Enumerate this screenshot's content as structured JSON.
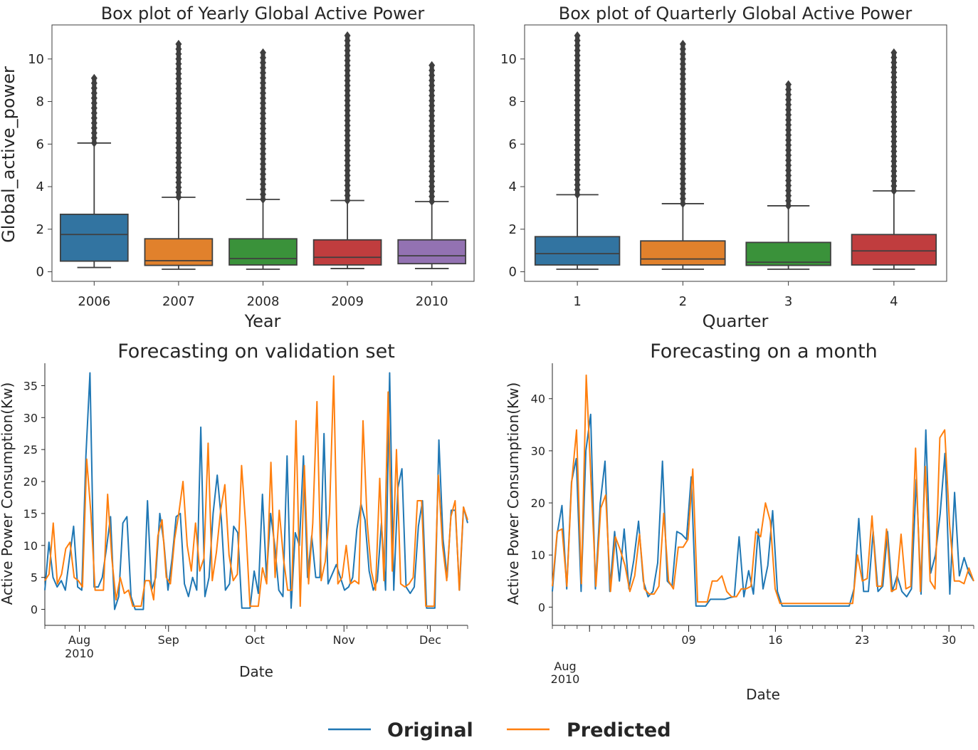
{
  "chart_data": [
    {
      "type": "box",
      "title": "Box plot of Yearly Global Active Power",
      "xlabel": "Year",
      "ylabel": "Global_active_power",
      "ylim": [
        -0.45,
        11.6
      ],
      "yticks": [
        0,
        2,
        4,
        6,
        8,
        10
      ],
      "grid": false,
      "categories": [
        "2006",
        "2007",
        "2008",
        "2009",
        "2010"
      ],
      "colors": [
        "#3274a1",
        "#e1812c",
        "#3a923a",
        "#c03d3e",
        "#9372b2"
      ],
      "boxes": [
        {
          "whisker_low": 0.2,
          "q1": 0.5,
          "median": 1.75,
          "q3": 2.7,
          "whisker_high": 6.05,
          "outlier_max": 9.1
        },
        {
          "whisker_low": 0.12,
          "q1": 0.3,
          "median": 0.52,
          "q3": 1.55,
          "whisker_high": 3.5,
          "outlier_max": 10.7
        },
        {
          "whisker_low": 0.12,
          "q1": 0.32,
          "median": 0.62,
          "q3": 1.55,
          "whisker_high": 3.4,
          "outlier_max": 10.3
        },
        {
          "whisker_low": 0.15,
          "q1": 0.32,
          "median": 0.68,
          "q3": 1.5,
          "whisker_high": 3.35,
          "outlier_max": 11.1
        },
        {
          "whisker_low": 0.15,
          "q1": 0.38,
          "median": 0.75,
          "q3": 1.5,
          "whisker_high": 3.3,
          "outlier_max": 9.7
        }
      ]
    },
    {
      "type": "box",
      "title": "Box plot of Quarterly Global Active Power",
      "xlabel": "Quarter",
      "ylabel": "",
      "ylim": [
        -0.45,
        11.6
      ],
      "yticks": [
        0,
        2,
        4,
        6,
        8,
        10
      ],
      "grid": false,
      "categories": [
        "1",
        "2",
        "3",
        "4"
      ],
      "colors": [
        "#3274a1",
        "#e1812c",
        "#3a923a",
        "#c03d3e"
      ],
      "boxes": [
        {
          "whisker_low": 0.12,
          "q1": 0.32,
          "median": 0.85,
          "q3": 1.65,
          "whisker_high": 3.62,
          "outlier_max": 11.1
        },
        {
          "whisker_low": 0.12,
          "q1": 0.32,
          "median": 0.6,
          "q3": 1.45,
          "whisker_high": 3.2,
          "outlier_max": 10.7
        },
        {
          "whisker_low": 0.12,
          "q1": 0.3,
          "median": 0.45,
          "q3": 1.38,
          "whisker_high": 3.1,
          "outlier_max": 8.8
        },
        {
          "whisker_low": 0.12,
          "q1": 0.32,
          "median": 0.98,
          "q3": 1.75,
          "whisker_high": 3.8,
          "outlier_max": 10.3
        }
      ]
    },
    {
      "type": "line",
      "title": "Forecasting on validation set",
      "xlabel": "Date",
      "ylabel": "Active Power Consumption(Kw)",
      "x_start": "2010-07-20",
      "x_end": "2010-12-14",
      "ylim": [
        -2.5,
        38.5
      ],
      "yticks": [
        0,
        5,
        10,
        15,
        20,
        25,
        30,
        35
      ],
      "grid": false,
      "x_ticks": [
        {
          "date": "2010-08-01",
          "label": "Aug",
          "sublabel": "2010"
        },
        {
          "date": "2010-09-01",
          "label": "Sep",
          "sublabel": ""
        },
        {
          "date": "2010-10-01",
          "label": "Oct",
          "sublabel": ""
        },
        {
          "date": "2010-11-01",
          "label": "Nov",
          "sublabel": ""
        },
        {
          "date": "2010-12-01",
          "label": "Dec",
          "sublabel": ""
        }
      ],
      "series": [
        {
          "name": "Original",
          "color": "#1f77b4",
          "values": [
            3,
            10.5,
            5,
            3.5,
            4.5,
            3,
            8,
            13,
            3.5,
            3,
            24,
            37,
            3.5,
            3.5,
            5,
            9.5,
            14.5,
            0,
            2,
            13.5,
            14.5,
            2,
            0,
            0,
            0,
            17,
            3,
            5,
            15,
            10.5,
            3,
            8,
            14.5,
            15,
            4,
            2,
            5,
            3,
            28.5,
            2,
            5,
            15,
            21,
            14,
            3,
            4,
            13,
            12,
            0.2,
            0.2,
            0.2,
            6,
            2.5,
            18,
            5,
            15,
            10,
            3,
            2,
            24,
            0.2,
            12,
            10,
            24,
            5,
            11.5,
            5,
            5,
            27.5,
            4,
            5.5,
            7,
            5,
            3,
            3.5,
            5,
            12.5,
            16.5,
            14,
            6,
            3,
            4.5,
            13.5,
            3,
            37,
            3,
            19,
            22,
            3.5,
            2.5,
            3.5,
            13,
            17,
            0.2,
            0.2,
            0.2,
            26.5,
            11,
            5,
            15.5,
            15.5,
            3,
            16,
            13.5
          ]
        },
        {
          "name": "Predicted",
          "color": "#ff7f0e",
          "values": [
            4.5,
            5.5,
            13.5,
            4,
            5.5,
            9.5,
            10.5,
            5,
            4.5,
            3.5,
            23.5,
            15,
            3,
            3,
            3,
            18,
            8,
            1.5,
            5,
            2.5,
            3,
            0.5,
            0.5,
            0.5,
            4.5,
            4.5,
            1.5,
            11.5,
            14,
            5,
            4,
            11,
            15,
            20,
            10,
            6,
            13.5,
            6,
            8,
            26,
            4.5,
            9,
            15.5,
            19.5,
            8.5,
            4.5,
            5.5,
            22.5,
            13,
            0.5,
            0.5,
            0.5,
            6.5,
            4,
            23,
            5,
            15.5,
            8,
            3,
            3,
            29.5,
            0.5,
            22.5,
            4,
            13.5,
            32.5,
            4.5,
            7.5,
            15,
            36.5,
            4,
            5,
            10,
            4,
            4.5,
            4,
            29.5,
            13.5,
            6,
            3,
            20.5,
            4.5,
            34,
            6,
            25,
            4,
            3.5,
            4,
            5,
            17,
            17,
            0.5,
            0.5,
            0.5,
            21,
            10,
            4.5,
            14.5,
            17,
            3,
            16,
            14
          ]
        }
      ]
    },
    {
      "type": "line",
      "title": "Forecasting on a month",
      "xlabel": "Date",
      "ylabel": "Active Power Consumption(Kw)",
      "x_start": "2010-07-29 00:00",
      "x_end": "2010-09-01 00:00",
      "ylim": [
        -3.5,
        46.8
      ],
      "yticks": [
        0,
        10,
        20,
        30,
        40
      ],
      "grid": false,
      "x_ticks": [
        {
          "date": "2010-08-01",
          "label": "",
          "sublabel": ""
        },
        {
          "date": "2010-08-09",
          "label": "09",
          "sublabel": ""
        },
        {
          "date": "2010-08-16",
          "label": "16",
          "sublabel": ""
        },
        {
          "date": "2010-08-23",
          "label": "23",
          "sublabel": ""
        },
        {
          "date": "2010-08-30",
          "label": "30",
          "sublabel": ""
        }
      ],
      "month_marker": {
        "label": "Aug",
        "sublabel": "2010"
      },
      "series": [
        {
          "name": "Original",
          "color": "#1f77b4",
          "values": [
            3,
            14,
            19.5,
            3.5,
            24,
            28.5,
            3,
            30,
            37,
            3.5,
            20,
            28,
            3,
            14.5,
            5,
            15,
            3.5,
            9,
            16.5,
            5,
            2,
            3,
            8.5,
            28,
            5,
            4,
            14.5,
            14,
            13,
            25,
            0.2,
            0.2,
            0.2,
            1.5,
            1.5,
            1.5,
            1.5,
            1.8,
            2,
            13.5,
            2,
            7,
            2.5,
            15,
            3.5,
            8,
            18.5,
            3,
            0.2,
            0.2,
            0.2,
            0.2,
            0.2,
            0.2,
            0.2,
            0.2,
            0.2,
            0.2,
            0.2,
            0.2,
            0.2,
            0.2,
            0.2,
            3.5,
            17,
            3,
            3,
            14.5,
            3,
            4,
            14.5,
            3,
            6,
            3,
            2,
            3.5,
            24.5,
            2.5,
            34,
            6.5,
            10,
            18,
            29.5,
            2.5,
            22,
            6,
            9.5,
            6.5,
            5
          ]
        },
        {
          "name": "Predicted",
          "color": "#ff7f0e",
          "values": [
            4,
            14.5,
            15,
            4,
            24,
            34,
            4.5,
            44.5,
            24,
            4,
            19,
            21.5,
            3,
            13.5,
            11,
            8,
            3,
            6,
            14,
            3.5,
            2.5,
            2.5,
            4,
            18,
            5,
            3.5,
            11.5,
            11.5,
            13,
            26.5,
            1,
            1,
            1,
            5,
            5,
            6,
            3,
            2,
            2,
            3.5,
            3.5,
            4,
            14.5,
            13.5,
            20,
            16.5,
            3.5,
            0.7,
            0.7,
            0.7,
            0.7,
            0.7,
            0.7,
            0.7,
            0.7,
            0.7,
            0.7,
            0.7,
            0.7,
            0.7,
            0.7,
            0.7,
            0.7,
            10,
            5,
            5.5,
            17.5,
            4,
            4,
            15,
            3,
            3.5,
            14,
            3.5,
            4,
            30.5,
            3,
            27,
            5,
            3.5,
            32.5,
            34,
            16,
            5,
            5,
            4.5,
            7.5,
            5
          ]
        }
      ]
    }
  ],
  "legend": {
    "items": [
      {
        "label": "Original",
        "color": "#1f77b4"
      },
      {
        "label": "Predicted",
        "color": "#ff7f0e"
      }
    ],
    "placement": "bottom-center"
  }
}
